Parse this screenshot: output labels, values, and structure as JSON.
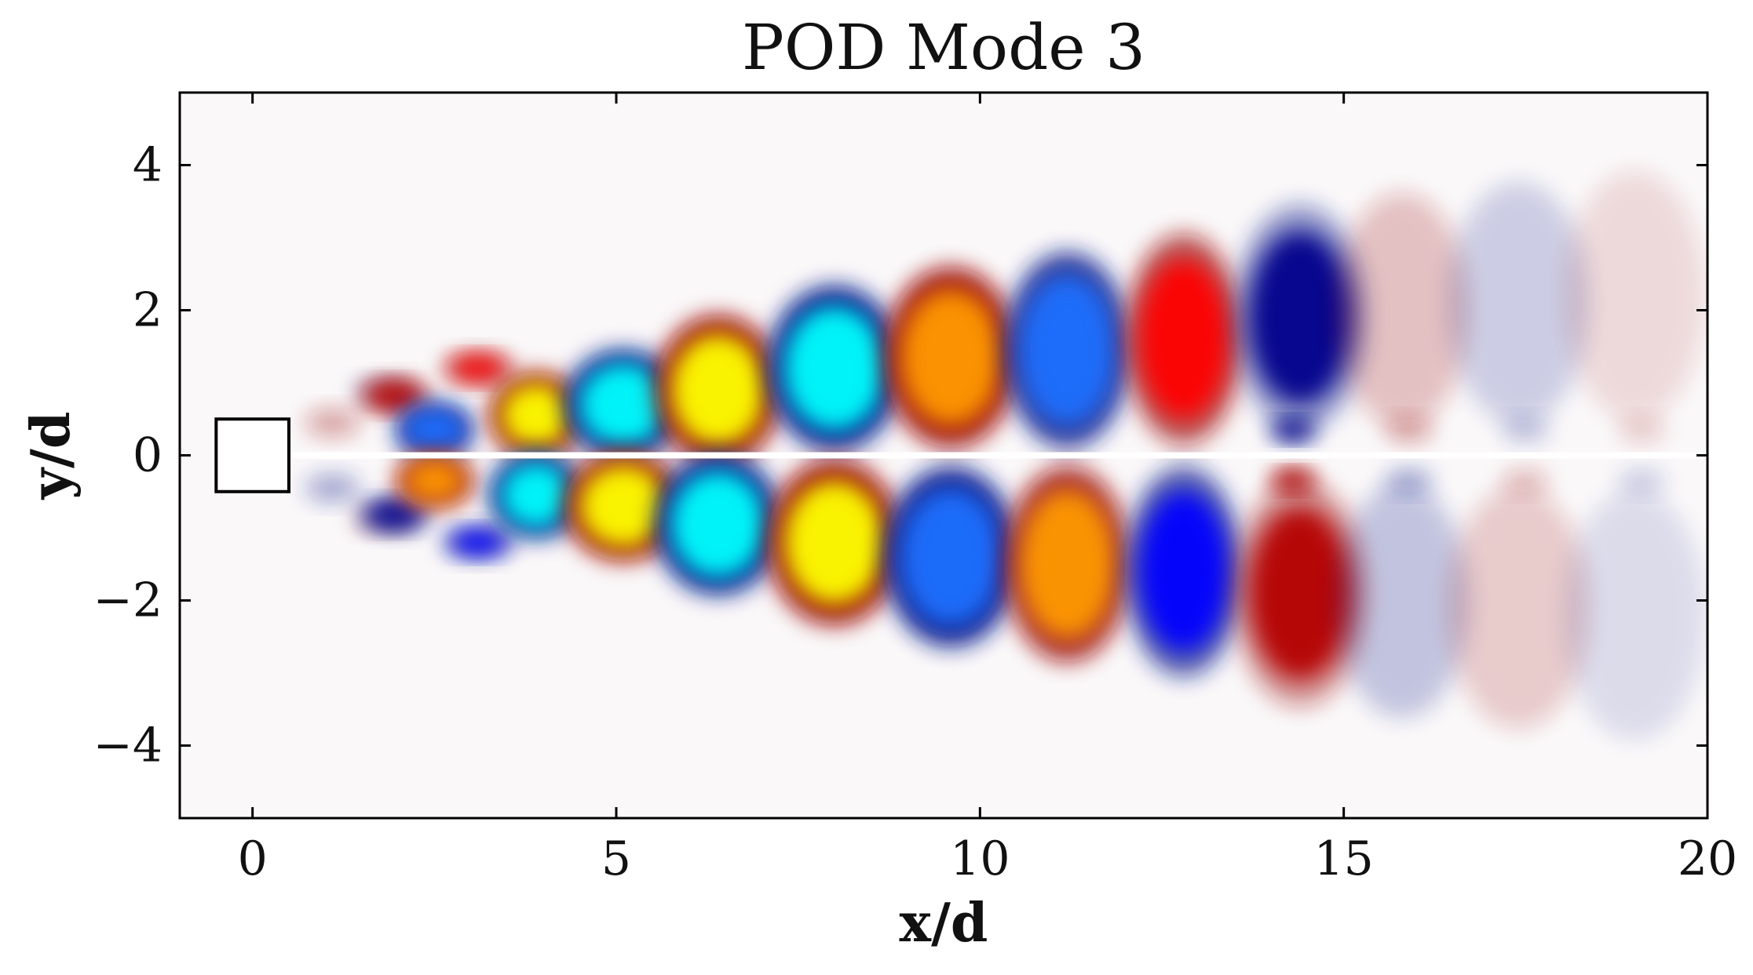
{
  "chart_data": {
    "type": "heatmap",
    "title": "POD Mode 3",
    "xlabel": "x/d",
    "ylabel": "y/d",
    "xlim": [
      -1,
      20
    ],
    "ylim": [
      -5,
      5
    ],
    "grid": false,
    "colormap": "blue-cyan-white-yellow-red (diverging)",
    "x_ticks": [
      0,
      5,
      10,
      15,
      20
    ],
    "x_tick_labels": [
      "0",
      "5",
      "10",
      "15",
      "20"
    ],
    "y_ticks": [
      -4,
      -2,
      0,
      2,
      4
    ],
    "y_tick_labels": [
      "−4",
      "−2",
      "0",
      "2",
      "4"
    ],
    "obstacle": {
      "shape": "square",
      "x_range": [
        -0.5,
        0.5
      ],
      "y_range": [
        -0.5,
        0.5
      ]
    },
    "structures": [
      {
        "x": 1.1,
        "y": 0.45,
        "rx": 0.35,
        "ry": 0.18,
        "value": 0.35
      },
      {
        "x": 1.8,
        "y": 0.9,
        "rx": 0.4,
        "ry": 0.15,
        "value": -0.25
      },
      {
        "x": 1.1,
        "y": -0.45,
        "rx": 0.35,
        "ry": 0.18,
        "value": -0.35
      },
      {
        "x": 1.8,
        "y": -0.9,
        "rx": 0.4,
        "ry": 0.15,
        "value": 0.25
      },
      {
        "x": 1.95,
        "y": 0.82,
        "rx": 0.45,
        "ry": 0.22,
        "value": 0.55
      },
      {
        "x": 1.95,
        "y": -0.82,
        "rx": 0.45,
        "ry": 0.22,
        "value": -0.55
      },
      {
        "x": 2.5,
        "y": 0.35,
        "rx": 0.5,
        "ry": 0.35,
        "value": -0.85
      },
      {
        "x": 2.5,
        "y": -0.35,
        "rx": 0.5,
        "ry": 0.35,
        "value": 0.85
      },
      {
        "x": 3.1,
        "y": 1.2,
        "rx": 0.45,
        "ry": 0.2,
        "value": 0.6
      },
      {
        "x": 3.1,
        "y": -1.2,
        "rx": 0.45,
        "ry": 0.2,
        "value": -0.6
      },
      {
        "x": 3.9,
        "y": 0.55,
        "rx": 0.6,
        "ry": 0.55,
        "value": 1.0
      },
      {
        "x": 3.9,
        "y": -0.55,
        "rx": 0.6,
        "ry": 0.55,
        "value": -1.0
      },
      {
        "x": 5.1,
        "y": 0.7,
        "rx": 0.75,
        "ry": 0.7,
        "value": -1.0
      },
      {
        "x": 5.1,
        "y": -0.7,
        "rx": 0.75,
        "ry": 0.7,
        "value": 1.0
      },
      {
        "x": 6.4,
        "y": 0.9,
        "rx": 0.8,
        "ry": 0.95,
        "value": 1.0
      },
      {
        "x": 6.4,
        "y": -0.95,
        "rx": 0.8,
        "ry": 0.9,
        "value": -1.0
      },
      {
        "x": 8.0,
        "y": 1.2,
        "rx": 0.85,
        "ry": 1.05,
        "value": -0.95
      },
      {
        "x": 8.0,
        "y": -1.2,
        "rx": 0.85,
        "ry": 1.05,
        "value": 0.95
      },
      {
        "x": 9.6,
        "y": 1.35,
        "rx": 0.85,
        "ry": 1.15,
        "value": 0.9
      },
      {
        "x": 9.6,
        "y": -1.4,
        "rx": 0.85,
        "ry": 1.15,
        "value": -0.9
      },
      {
        "x": 11.2,
        "y": 1.45,
        "rx": 0.8,
        "ry": 1.25,
        "value": -0.8
      },
      {
        "x": 11.2,
        "y": -1.5,
        "rx": 0.8,
        "ry": 1.25,
        "value": 0.8
      },
      {
        "x": 12.8,
        "y": 1.6,
        "rx": 0.75,
        "ry": 1.35,
        "value": 0.65
      },
      {
        "x": 12.8,
        "y": -1.6,
        "rx": 0.75,
        "ry": 1.35,
        "value": -0.65
      },
      {
        "x": 14.4,
        "y": 1.9,
        "rx": 0.85,
        "ry": 1.45,
        "value": -0.4
      },
      {
        "x": 14.4,
        "y": -1.9,
        "rx": 0.85,
        "ry": 1.45,
        "value": 0.4
      },
      {
        "x": 15.8,
        "y": 2.0,
        "rx": 0.85,
        "ry": 1.5,
        "value": 0.22
      },
      {
        "x": 15.8,
        "y": -2.0,
        "rx": 0.85,
        "ry": 1.5,
        "value": -0.22
      },
      {
        "x": 17.4,
        "y": 2.1,
        "rx": 0.9,
        "ry": 1.55,
        "value": -0.18
      },
      {
        "x": 17.4,
        "y": -2.1,
        "rx": 0.9,
        "ry": 1.55,
        "value": 0.18
      },
      {
        "x": 19.0,
        "y": 2.2,
        "rx": 0.9,
        "ry": 1.6,
        "value": 0.12
      },
      {
        "x": 19.0,
        "y": -2.2,
        "rx": 0.9,
        "ry": 1.6,
        "value": -0.12
      },
      {
        "x": 14.3,
        "y": 0.35,
        "rx": 0.3,
        "ry": 0.15,
        "value": -0.55
      },
      {
        "x": 15.9,
        "y": 0.35,
        "rx": 0.3,
        "ry": 0.15,
        "value": 0.35
      },
      {
        "x": 17.5,
        "y": 0.35,
        "rx": 0.3,
        "ry": 0.15,
        "value": -0.25
      },
      {
        "x": 19.1,
        "y": 0.35,
        "rx": 0.3,
        "ry": 0.15,
        "value": 0.2
      },
      {
        "x": 14.3,
        "y": -0.35,
        "rx": 0.3,
        "ry": 0.15,
        "value": 0.55
      },
      {
        "x": 15.9,
        "y": -0.35,
        "rx": 0.3,
        "ry": 0.15,
        "value": -0.35
      },
      {
        "x": 17.5,
        "y": -0.35,
        "rx": 0.3,
        "ry": 0.15,
        "value": 0.25
      },
      {
        "x": 19.1,
        "y": -0.35,
        "rx": 0.3,
        "ry": 0.15,
        "value": -0.2
      }
    ]
  }
}
